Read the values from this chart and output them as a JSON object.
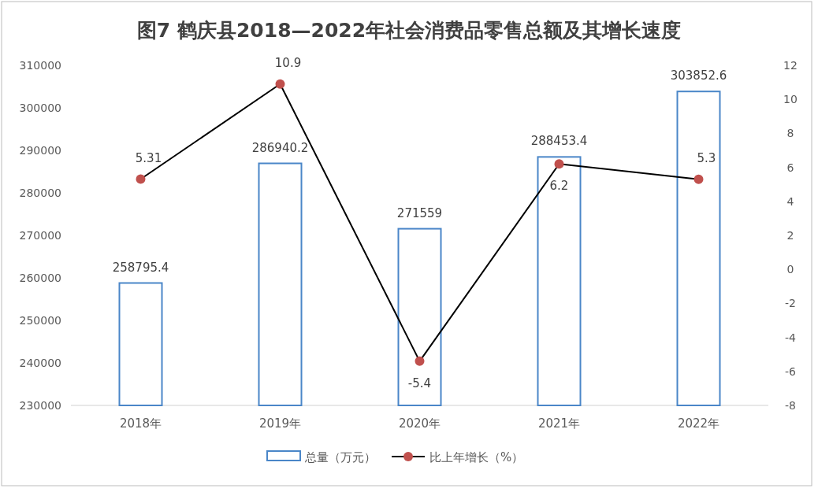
{
  "chart_data": {
    "type": "bar",
    "title": "图7  鹤庆县2018—2022年社会消费品零售总额及其增长速度",
    "categories": [
      "2018年",
      "2019年",
      "2020年",
      "2021年",
      "2022年"
    ],
    "series": [
      {
        "name": "总量（万元）",
        "color": "#4a86c8",
        "values": [
          258795.4,
          286940.2,
          271559,
          288453.4,
          303852.6
        ]
      },
      {
        "name": "比上年增长（%）",
        "type": "line",
        "axis": "y2",
        "color": "#000000",
        "marker": "circle",
        "values": [
          5.31,
          10.9,
          -5.4,
          6.2,
          5.3
        ]
      }
    ],
    "ylim": [
      230000,
      310000
    ],
    "yticks": [
      230000,
      240000,
      250000,
      260000,
      270000,
      280000,
      290000,
      300000,
      310000
    ],
    "y2lim": [
      -8,
      12
    ],
    "y2ticks": [
      -8,
      -6,
      -4,
      -2,
      0,
      2,
      4,
      6,
      8,
      10,
      12
    ],
    "data_labels": true,
    "legend": "bottom"
  }
}
